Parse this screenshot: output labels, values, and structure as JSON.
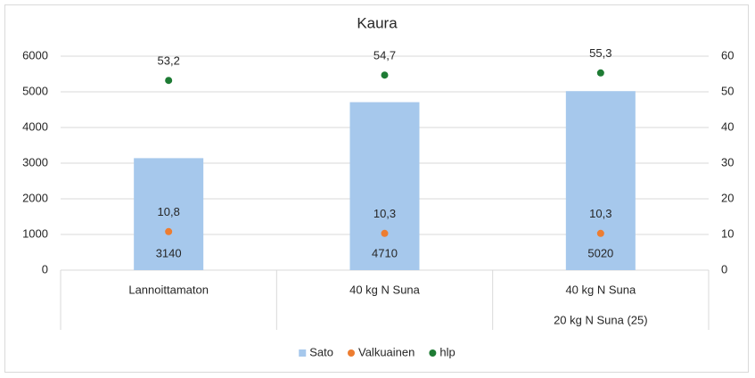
{
  "chart_data": {
    "type": "combo",
    "title": "Kaura",
    "categories": [
      "Lannoittamaton",
      "40 kg N Suna",
      "40 kg N Suna"
    ],
    "subcategories": [
      null,
      null,
      "20 kg N Suna (25)"
    ],
    "series": [
      {
        "name": "Sato",
        "type": "bar",
        "color": "#a6c8ec",
        "values": [
          3140,
          4710,
          5020
        ]
      },
      {
        "name": "Valkuainen",
        "type": "scatter",
        "axis": "y2",
        "color": "#ed7d31",
        "values": [
          10.8,
          10.3,
          10.3
        ],
        "value_labels": [
          "10,8",
          "10,3",
          "10,3"
        ]
      },
      {
        "name": "hlp",
        "type": "scatter",
        "axis": "y2",
        "color": "#1e7b34",
        "values": [
          53.2,
          54.7,
          55.3
        ],
        "value_labels": [
          "53,2",
          "54,7",
          "55,3"
        ]
      }
    ],
    "ylim": [
      0,
      6000
    ],
    "yticks": [
      0,
      1000,
      2000,
      3000,
      4000,
      5000,
      6000
    ],
    "y2lim": [
      0,
      60
    ],
    "y2ticks": [
      0,
      10,
      20,
      30,
      40,
      50,
      60
    ],
    "grid": true,
    "legend": "bottom"
  }
}
